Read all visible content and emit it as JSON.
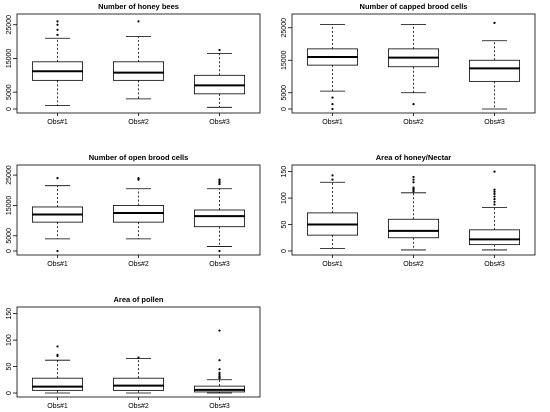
{
  "figure": {
    "background": "#ffffff",
    "box_color": "#000000"
  },
  "chart_data": [
    {
      "type": "boxplot",
      "title": "Number of honey bees",
      "categories": [
        "Obs#1",
        "Obs#2",
        "Obs#3"
      ],
      "ylim": [
        0,
        27000
      ],
      "yticks": [
        0,
        5000,
        15000,
        25000
      ],
      "grid": false,
      "boxes": [
        {
          "whisker_low": 1000,
          "q1": 8500,
          "median": 11200,
          "q3": 14000,
          "whisker_high": 21000,
          "outliers": [
            22000,
            23500,
            25000,
            26000
          ]
        },
        {
          "whisker_low": 3000,
          "q1": 8500,
          "median": 10800,
          "q3": 14000,
          "whisker_high": 21500,
          "outliers": [
            26000
          ]
        },
        {
          "whisker_low": 500,
          "q1": 4500,
          "median": 7000,
          "q3": 10000,
          "whisker_high": 16500,
          "outliers": [
            17500
          ]
        }
      ]
    },
    {
      "type": "boxplot",
      "title": "Number of capped brood cells",
      "categories": [
        "Obs#1",
        "Obs#2",
        "Obs#3"
      ],
      "ylim": [
        0,
        28000
      ],
      "yticks": [
        0,
        5000,
        15000,
        25000
      ],
      "grid": false,
      "boxes": [
        {
          "whisker_low": 5500,
          "q1": 13500,
          "median": 16000,
          "q3": 18500,
          "whisker_high": 26000,
          "outliers": [
            0,
            1500,
            3500
          ]
        },
        {
          "whisker_low": 5000,
          "q1": 13000,
          "median": 15800,
          "q3": 18500,
          "whisker_high": 26000,
          "outliers": [
            1500
          ]
        },
        {
          "whisker_low": 0,
          "q1": 8500,
          "median": 12500,
          "q3": 15000,
          "whisker_high": 21000,
          "outliers": [
            26500
          ]
        }
      ]
    },
    {
      "type": "boxplot",
      "title": "Number of open brood cells",
      "categories": [
        "Obs#1",
        "Obs#2",
        "Obs#3"
      ],
      "ylim": [
        0,
        27000
      ],
      "yticks": [
        0,
        5000,
        15000,
        25000
      ],
      "grid": false,
      "boxes": [
        {
          "whisker_low": 4000,
          "q1": 9500,
          "median": 12000,
          "q3": 14500,
          "whisker_high": 21500,
          "outliers": [
            24000,
            0
          ]
        },
        {
          "whisker_low": 4000,
          "q1": 9500,
          "median": 12500,
          "q3": 15000,
          "whisker_high": 20500,
          "outliers": [
            23500,
            24000
          ]
        },
        {
          "whisker_low": 1500,
          "q1": 8000,
          "median": 11500,
          "q3": 13500,
          "whisker_high": 20500,
          "outliers": [
            22000,
            22500,
            23000,
            23500,
            0
          ]
        }
      ]
    },
    {
      "type": "boxplot",
      "title": "Area of honey/Nectar",
      "categories": [
        "Obs#1",
        "Obs#2",
        "Obs#3"
      ],
      "ylim": [
        0,
        155
      ],
      "yticks": [
        0,
        50,
        100,
        150
      ],
      "grid": false,
      "boxes": [
        {
          "whisker_low": 5,
          "q1": 30,
          "median": 50,
          "q3": 72,
          "whisker_high": 130,
          "outliers": [
            135,
            143
          ]
        },
        {
          "whisker_low": 2,
          "q1": 25,
          "median": 38,
          "q3": 60,
          "whisker_high": 110,
          "outliers": [
            113,
            116,
            118,
            120,
            130,
            135,
            140
          ]
        },
        {
          "whisker_low": 2,
          "q1": 12,
          "median": 22,
          "q3": 40,
          "whisker_high": 82,
          "outliers": [
            88,
            93,
            98,
            103,
            108,
            112,
            116,
            150
          ]
        }
      ]
    },
    {
      "type": "boxplot",
      "title": "Area of pollen",
      "categories": [
        "Obs#1",
        "Obs#2",
        "Obs#3"
      ],
      "ylim": [
        0,
        155
      ],
      "yticks": [
        0,
        50,
        100,
        150
      ],
      "grid": false,
      "boxes": [
        {
          "whisker_low": 0,
          "q1": 5,
          "median": 12,
          "q3": 28,
          "whisker_high": 62,
          "outliers": [
            70,
            72,
            88
          ]
        },
        {
          "whisker_low": 0,
          "q1": 5,
          "median": 14,
          "q3": 28,
          "whisker_high": 65,
          "outliers": [
            67
          ]
        },
        {
          "whisker_low": 0,
          "q1": 2,
          "median": 6,
          "q3": 13,
          "whisker_high": 25,
          "outliers": [
            28,
            30,
            32,
            35,
            38,
            45,
            62,
            118
          ]
        }
      ]
    }
  ]
}
